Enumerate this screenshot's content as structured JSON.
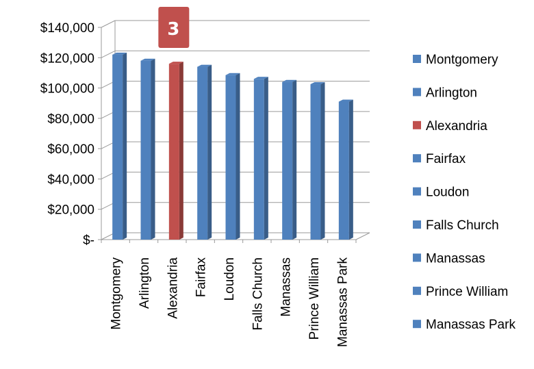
{
  "chart_data": {
    "type": "bar",
    "categories": [
      "Montgomery",
      "Arlington",
      "Alexandria",
      "Fairfax",
      "Loudon",
      "Falls Church",
      "Manassas",
      "Prince William",
      "Manassas Park"
    ],
    "values": [
      122000,
      118000,
      116000,
      114000,
      108500,
      106000,
      104000,
      102500,
      91000
    ],
    "highlight_category": "Alexandria",
    "highlight_label": "3",
    "ylim": [
      0,
      140000
    ],
    "yticks": [
      "$-",
      "$20,000",
      "$40,000",
      "$60,000",
      "$80,000",
      "$100,000",
      "$120,000",
      "$140,000"
    ],
    "grid": true,
    "legend_position": "right",
    "colors": {
      "bar": "#4F81BD",
      "highlight": "#C0504D",
      "badge": "#C0504D"
    }
  }
}
